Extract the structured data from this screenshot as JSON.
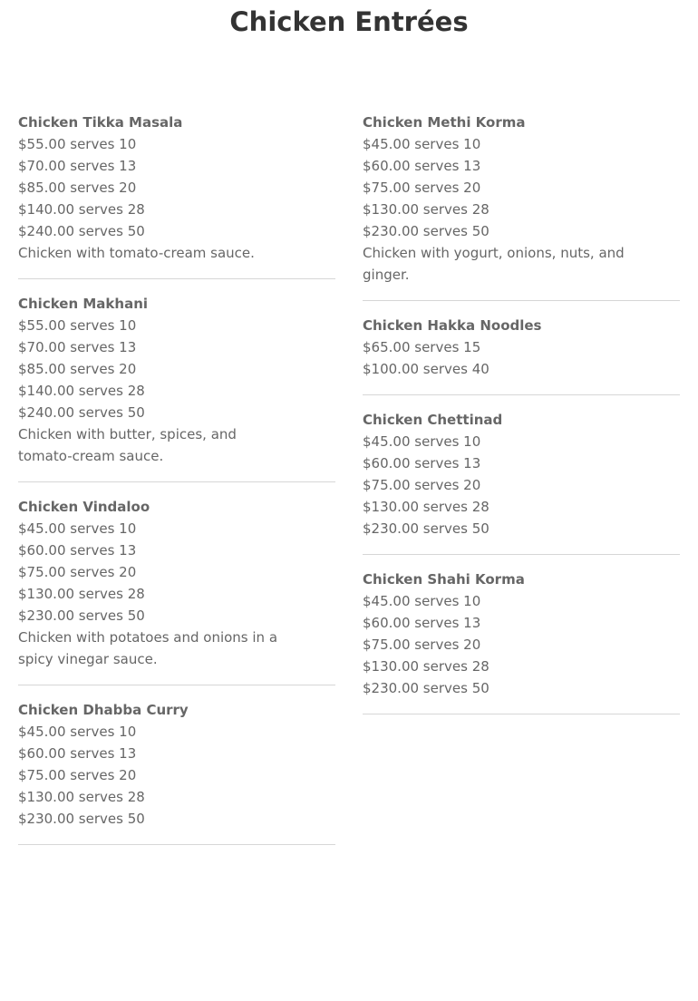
{
  "title": "Chicken Entrées",
  "columns": [
    [
      {
        "name": "Chicken Tikka Masala",
        "prices": [
          "$55.00 serves 10",
          "$70.00 serves 13",
          "$85.00 serves 20",
          "$140.00 serves 28",
          "$240.00 serves 50"
        ],
        "description": "Chicken with tomato-cream sauce."
      },
      {
        "name": "Chicken Makhani",
        "prices": [
          "$55.00 serves 10",
          "$70.00 serves 13",
          "$85.00 serves 20",
          "$140.00 serves 28",
          "$240.00 serves 50"
        ],
        "description": "Chicken with butter, spices, and tomato-cream sauce."
      },
      {
        "name": "Chicken Vindaloo",
        "prices": [
          "$45.00 serves 10",
          "$60.00 serves 13",
          "$75.00 serves 20",
          "$130.00 serves 28",
          "$230.00 serves 50"
        ],
        "description": "Chicken with potatoes and onions in a spicy vinegar sauce."
      },
      {
        "name": "Chicken Dhabba Curry",
        "prices": [
          "$45.00 serves 10",
          "$60.00 serves 13",
          "$75.00 serves 20",
          "$130.00 serves 28",
          "$230.00 serves 50"
        ],
        "description": ""
      }
    ],
    [
      {
        "name": "Chicken Methi Korma",
        "prices": [
          "$45.00 serves 10",
          "$60.00 serves 13",
          "$75.00 serves 20",
          "$130.00 serves 28",
          "$230.00 serves 50"
        ],
        "description": "Chicken with yogurt, onions, nuts, and ginger."
      },
      {
        "name": "Chicken Hakka Noodles",
        "prices": [
          "$65.00 serves 15",
          "$100.00 serves 40"
        ],
        "description": ""
      },
      {
        "name": "Chicken Chettinad",
        "prices": [
          "$45.00 serves 10",
          "$60.00 serves 13",
          "$75.00 serves 20",
          "$130.00 serves 28",
          "$230.00 serves 50"
        ],
        "description": ""
      },
      {
        "name": "Chicken Shahi Korma",
        "prices": [
          "$45.00 serves 10",
          "$60.00 serves 13",
          "$75.00 serves 20",
          "$130.00 serves 28",
          "$230.00 serves 50"
        ],
        "description": ""
      }
    ]
  ]
}
